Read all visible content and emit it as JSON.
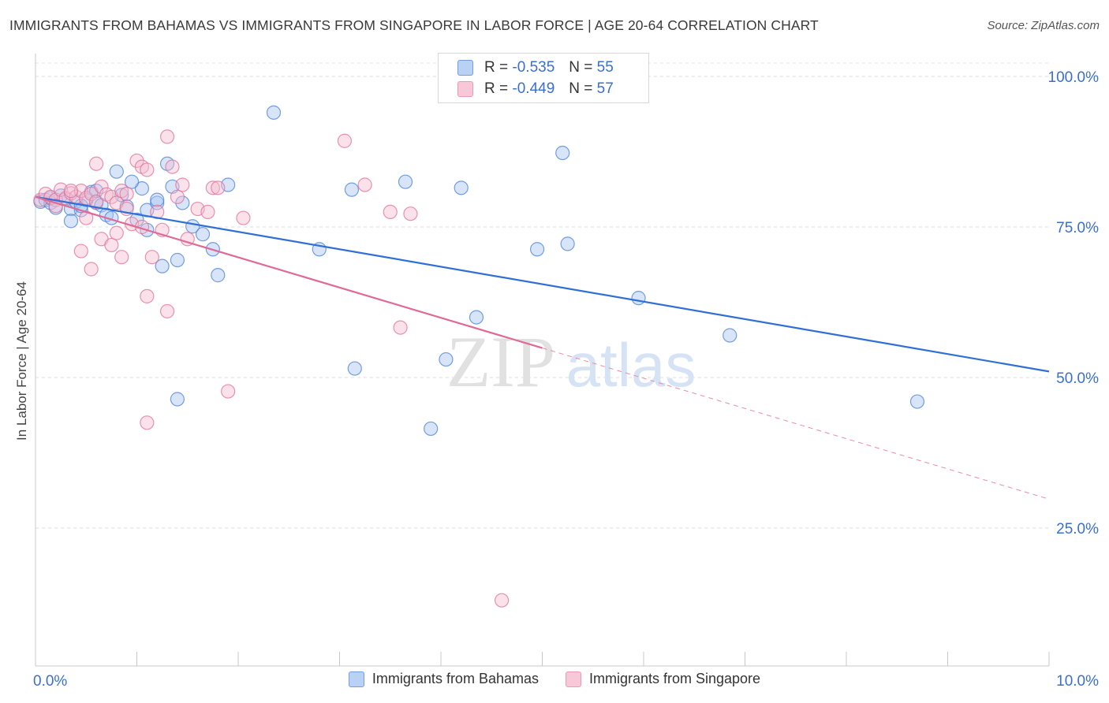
{
  "header": {
    "title": "IMMIGRANTS FROM BAHAMAS VS IMMIGRANTS FROM SINGAPORE IN LABOR FORCE | AGE 20-64 CORRELATION CHART",
    "source": "Source: ZipAtlas.com"
  },
  "watermark": {
    "zip": "ZIP",
    "atlas": "atlas"
  },
  "stats": [
    {
      "r_label": "R =",
      "r_value": "-0.535",
      "n_label": "N =",
      "n_value": "55",
      "color": "#7aa7e8"
    },
    {
      "r_label": "R =",
      "r_value": "-0.449",
      "n_label": "N =",
      "n_value": "57",
      "color": "#f0a0bb"
    }
  ],
  "chart_data": {
    "type": "scatter",
    "title": "IMMIGRANTS FROM BAHAMAS VS IMMIGRANTS FROM SINGAPORE IN LABOR FORCE | AGE 20-64 CORRELATION CHART",
    "xlabel": "",
    "ylabel": "In Labor Force | Age 20-64",
    "xlim": [
      0,
      10
    ],
    "ylim": [
      0,
      100
    ],
    "x_tick_labels": [
      "0.0%",
      "10.0%"
    ],
    "y_tick_labels": [
      "100.0%",
      "75.0%",
      "50.0%",
      "25.0%"
    ],
    "y_ticks": [
      100,
      75,
      50,
      25
    ],
    "grid": true,
    "legend_placement": "bottom-center",
    "series": [
      {
        "name": "Immigrants from Bahamas",
        "color": "#4a80d8",
        "fill": "#a9c6f0",
        "trend": {
          "x": [
            0,
            10
          ],
          "y": [
            80.0,
            51.0
          ],
          "dashed_from": null
        },
        "points": [
          [
            0.05,
            79.2
          ],
          [
            0.1,
            79.5
          ],
          [
            0.15,
            79.0
          ],
          [
            0.2,
            78.2
          ],
          [
            0.25,
            80.2
          ],
          [
            0.3,
            79.6
          ],
          [
            0.35,
            78.0
          ],
          [
            0.4,
            79.2
          ],
          [
            0.45,
            77.8
          ],
          [
            0.55,
            80.8
          ],
          [
            0.6,
            79.0
          ],
          [
            0.65,
            78.6
          ],
          [
            0.7,
            77.0
          ],
          [
            0.8,
            84.2
          ],
          [
            0.85,
            80.3
          ],
          [
            0.9,
            78.4
          ],
          [
            1.0,
            76.2
          ],
          [
            1.05,
            81.4
          ],
          [
            1.1,
            77.8
          ],
          [
            1.2,
            79.0
          ],
          [
            1.3,
            85.5
          ],
          [
            1.35,
            81.7
          ],
          [
            1.45,
            79.0
          ],
          [
            1.55,
            75.1
          ],
          [
            1.65,
            73.8
          ],
          [
            1.75,
            71.3
          ],
          [
            1.9,
            82.0
          ],
          [
            2.35,
            94.0
          ],
          [
            2.8,
            71.3
          ],
          [
            3.15,
            51.5
          ],
          [
            3.12,
            81.2
          ],
          [
            3.65,
            82.5
          ],
          [
            3.9,
            41.5
          ],
          [
            4.05,
            53.0
          ],
          [
            4.2,
            81.5
          ],
          [
            4.35,
            60.0
          ],
          [
            4.95,
            71.3
          ],
          [
            5.25,
            72.2
          ],
          [
            5.2,
            87.3
          ],
          [
            5.95,
            63.2
          ],
          [
            6.85,
            57.0
          ],
          [
            8.7,
            46.0
          ],
          [
            0.75,
            76.5
          ],
          [
            0.35,
            76.0
          ],
          [
            1.1,
            74.5
          ],
          [
            1.25,
            68.5
          ],
          [
            1.4,
            69.5
          ],
          [
            1.8,
            67.0
          ],
          [
            1.2,
            79.5
          ],
          [
            0.95,
            82.5
          ],
          [
            0.5,
            79.5
          ],
          [
            0.15,
            79.8
          ],
          [
            0.45,
            78.5
          ],
          [
            0.6,
            81.0
          ],
          [
            1.4,
            46.4
          ]
        ]
      },
      {
        "name": "Immigrants from Singapore",
        "color": "#e0709a",
        "fill": "#f5bcd0",
        "trend": {
          "x": [
            0,
            10
          ],
          "y": [
            80.0,
            29.8
          ],
          "dashed_from": 5.0
        },
        "points": [
          [
            0.05,
            79.5
          ],
          [
            0.1,
            80.5
          ],
          [
            0.15,
            80.0
          ],
          [
            0.2,
            79.5
          ],
          [
            0.25,
            81.2
          ],
          [
            0.3,
            79.8
          ],
          [
            0.35,
            80.6
          ],
          [
            0.4,
            80.0
          ],
          [
            0.45,
            81.0
          ],
          [
            0.5,
            79.8
          ],
          [
            0.55,
            80.5
          ],
          [
            0.6,
            79.2
          ],
          [
            0.65,
            81.7
          ],
          [
            0.7,
            80.4
          ],
          [
            0.75,
            80.0
          ],
          [
            0.8,
            79.0
          ],
          [
            0.85,
            81.0
          ],
          [
            0.9,
            78.0
          ],
          [
            0.95,
            75.5
          ],
          [
            1.0,
            86.0
          ],
          [
            1.05,
            85.0
          ],
          [
            1.1,
            84.5
          ],
          [
            1.2,
            77.5
          ],
          [
            1.3,
            90.0
          ],
          [
            1.35,
            85.0
          ],
          [
            1.45,
            82.0
          ],
          [
            1.5,
            73.0
          ],
          [
            1.6,
            78.0
          ],
          [
            1.7,
            77.5
          ],
          [
            1.75,
            81.5
          ],
          [
            1.8,
            81.5
          ],
          [
            2.05,
            76.5
          ],
          [
            0.45,
            71.0
          ],
          [
            0.55,
            68.0
          ],
          [
            0.65,
            73.0
          ],
          [
            0.75,
            72.0
          ],
          [
            0.85,
            70.0
          ],
          [
            1.05,
            75.0
          ],
          [
            1.15,
            70.0
          ],
          [
            1.25,
            74.5
          ],
          [
            1.1,
            63.5
          ],
          [
            1.3,
            61.0
          ],
          [
            1.1,
            42.5
          ],
          [
            1.9,
            47.7
          ],
          [
            3.05,
            89.3
          ],
          [
            3.25,
            82.0
          ],
          [
            3.5,
            77.5
          ],
          [
            3.7,
            77.2
          ],
          [
            3.6,
            58.3
          ],
          [
            4.6,
            13.0
          ],
          [
            0.6,
            85.5
          ],
          [
            0.35,
            81.0
          ],
          [
            0.2,
            78.5
          ],
          [
            0.5,
            76.5
          ],
          [
            0.9,
            80.5
          ],
          [
            0.8,
            74.0
          ],
          [
            1.4,
            80.0
          ]
        ]
      }
    ]
  },
  "legend": {
    "items": [
      {
        "label": "Immigrants from Bahamas",
        "fill": "#b9d1f3",
        "border": "#6f9ee3"
      },
      {
        "label": "Immigrants from Singapore",
        "fill": "#f8c8d8",
        "border": "#eb9ab6"
      }
    ]
  }
}
